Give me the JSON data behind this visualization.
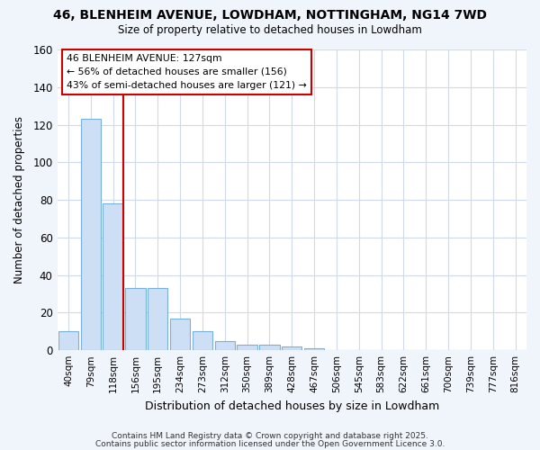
{
  "title_line1": "46, BLENHEIM AVENUE, LOWDHAM, NOTTINGHAM, NG14 7WD",
  "title_line2": "Size of property relative to detached houses in Lowdham",
  "xlabel": "Distribution of detached houses by size in Lowdham",
  "ylabel": "Number of detached properties",
  "bar_labels": [
    "40sqm",
    "79sqm",
    "118sqm",
    "156sqm",
    "195sqm",
    "234sqm",
    "273sqm",
    "312sqm",
    "350sqm",
    "389sqm",
    "428sqm",
    "467sqm",
    "506sqm",
    "545sqm",
    "583sqm",
    "622sqm",
    "661sqm",
    "700sqm",
    "739sqm",
    "777sqm",
    "816sqm"
  ],
  "bar_values": [
    10,
    123,
    78,
    33,
    33,
    17,
    10,
    5,
    3,
    3,
    2,
    1,
    0,
    0,
    0,
    0,
    0,
    0,
    0,
    0,
    0
  ],
  "bar_color": "#ccdff5",
  "bar_edge_color": "#7ab0dc",
  "red_line_color": "#cc0000",
  "annotation_line1": "46 BLENHEIM AVENUE: 127sqm",
  "annotation_line2": "← 56% of detached houses are smaller (156)",
  "annotation_line3": "43% of semi-detached houses are larger (121) →",
  "annotation_box_edge": "#cc0000",
  "annotation_box_face": "#ffffff",
  "ylim": [
    0,
    160
  ],
  "yticks": [
    0,
    20,
    40,
    60,
    80,
    100,
    120,
    140,
    160
  ],
  "footer_line1": "Contains HM Land Registry data © Crown copyright and database right 2025.",
  "footer_line2": "Contains public sector information licensed under the Open Government Licence 3.0.",
  "background_color": "#f0f4fb",
  "plot_bg_color": "#ffffff",
  "grid_color": "#d0daea"
}
